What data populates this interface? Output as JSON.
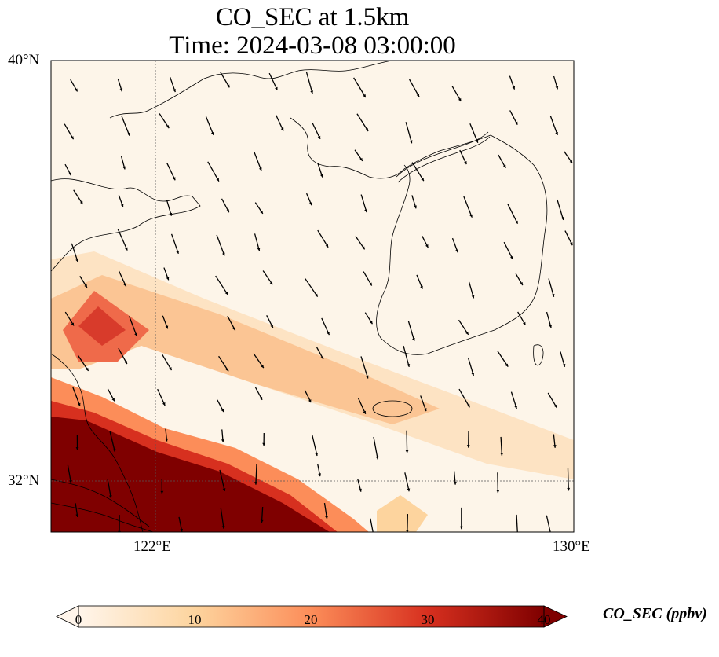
{
  "title": {
    "line1": "CO_SEC at 1.5km",
    "line2": "Time: 2024-03-08 03:00:00"
  },
  "axes": {
    "lat_labels": [
      "40°N",
      "32°N"
    ],
    "lon_labels": [
      "122°E",
      "130°E"
    ],
    "lat_range": [
      31,
      40
    ],
    "lon_range": [
      120,
      130
    ]
  },
  "colorbar": {
    "label": "CO_SEC (ppbv)",
    "ticks": [
      "0",
      "10",
      "20",
      "30",
      "40"
    ],
    "range": [
      0,
      40
    ],
    "extend": "both",
    "colormap": [
      "#fff5eb",
      "#fdd49e",
      "#fc8d59",
      "#d7301f",
      "#7f0000"
    ]
  },
  "colors": {
    "background": "#fdf5e9",
    "max_color": "#7f0000",
    "coast": "#000000"
  },
  "field": {
    "description_units": "ppbv",
    "max_region": "south-west corner",
    "secondary_max_region": "near 121°E, 34.5°N"
  },
  "wind": {
    "prevailing_direction": "from north-west"
  }
}
